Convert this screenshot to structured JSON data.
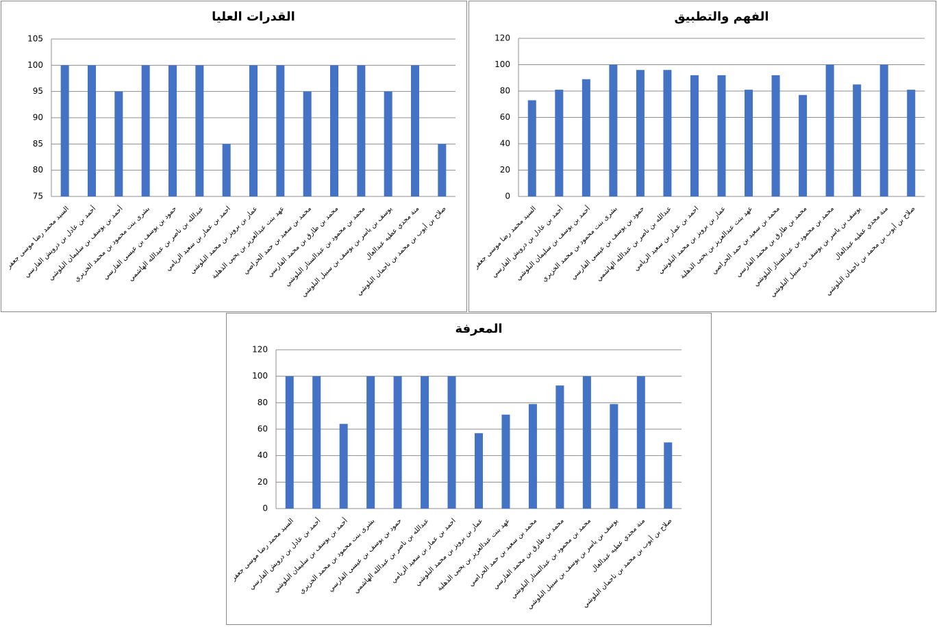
{
  "chart_data": [
    {
      "type": "bar",
      "title": "القدرات العليا",
      "categories": [
        "السيد محمد رضا موسى جعفر",
        "أحمد بن عادل بن درويش الفارسي",
        "أحمد بن يوسف بن سليمان البلوشي",
        "بشرى بنت محمود بن محمد الخزيري",
        "حمود بن يوسف بن عيسى الفارسي",
        "عبدالله بن ناصر بن عبدالله الهاشمي",
        "احمد بن عمار بن سعيد الريامي",
        "عمار بن برويز بن محمد البلوشي",
        "عهد بنت عبدالعزيز بن يحيى الذهلية",
        "محمد بن سعيد بن حمد الحراصي",
        "محمد بن طارق بن محمد الفارسي",
        "محمد بن محمود بن عبدالستار البلوشي",
        "يوسف بن ياسر بن يوسف بن سبيل البلوشي",
        "منة مجدي عطيه عبدالعال",
        "صلاح بن أيوب بن محمد بن ناجمان البلوشي"
      ],
      "values": [
        100,
        100,
        95,
        100,
        100,
        100,
        85,
        100,
        100,
        95,
        100,
        100,
        95,
        100,
        85
      ],
      "color": "#4472c4",
      "ylim": [
        75,
        105
      ],
      "yticks": [
        75,
        80,
        85,
        90,
        95,
        100,
        105
      ],
      "grid": true
    },
    {
      "type": "bar",
      "title": "الفهم والتطبيق",
      "categories": [
        "السيد محمد رضا موسى جعفر",
        "أحمد بن عادل بن درويش الفارسي",
        "أحمد بن يوسف بن سليمان البلوشي",
        "بشرى بنت محمود بن محمد الخزيري",
        "حمود بن يوسف بن عيسى الفارسي",
        "عبدالله بن ناصر بن عبدالله الهاشمي",
        "احمد بن عمار بن سعيد الريامي",
        "عمار بن برويز بن محمد البلوشي",
        "عهد بنت عبدالعزيز بن يحيى الذهلية",
        "محمد بن سعيد بن حمد الحراصي",
        "محمد بن طارق بن محمد الفارسي",
        "محمد بن محمود بن عبدالستار البلوشي",
        "يوسف بن ياسر بن يوسف بن سبيل البلوشي",
        "منة مجدي عطيه عبدالعال",
        "صلاح بن أيوب بن محمد بن ناجمان البلوشي"
      ],
      "values": [
        73,
        81,
        89,
        100,
        96,
        96,
        92,
        92,
        81,
        92,
        77,
        100,
        85,
        100,
        81
      ],
      "color": "#4472c4",
      "ylim": [
        0,
        120
      ],
      "yticks": [
        0,
        20,
        40,
        60,
        80,
        100,
        120
      ],
      "grid": true
    },
    {
      "type": "bar",
      "title": "المعرفة",
      "categories": [
        "السيد محمد رضا موسى جعفر",
        "أحمد بن عادل بن درويش الفارسي",
        "أحمد بن يوسف بن سليمان البلوشي",
        "بشرى بنت محمود بن محمد الخزيري",
        "حمود بن يوسف بن عيسى الفارسي",
        "عبدالله بن ناصر بن عبدالله الهاشمي",
        "احمد بن عمار بن سعيد الريامي",
        "عمار بن برويز بن محمد البلوشي",
        "عهد بنت عبدالعزيز بن يحيى الذهلية",
        "محمد بن سعيد بن حمد الحراصي",
        "محمد بن طارق بن محمد الفارسي",
        "محمد بن محمود بن عبدالستار البلوشي",
        "يوسف بن ياسر بن يوسف بن سبيل البلوشي",
        "منة مجدي عطيه عبدالعال",
        "صلاح بن أيوب بن محمد بن ناجمان البلوشي"
      ],
      "values": [
        100,
        100,
        64,
        100,
        100,
        100,
        100,
        57,
        71,
        79,
        93,
        100,
        79,
        100,
        50
      ],
      "color": "#4472c4",
      "ylim": [
        0,
        120
      ],
      "yticks": [
        0,
        20,
        40,
        60,
        80,
        100,
        120
      ],
      "grid": true
    }
  ]
}
